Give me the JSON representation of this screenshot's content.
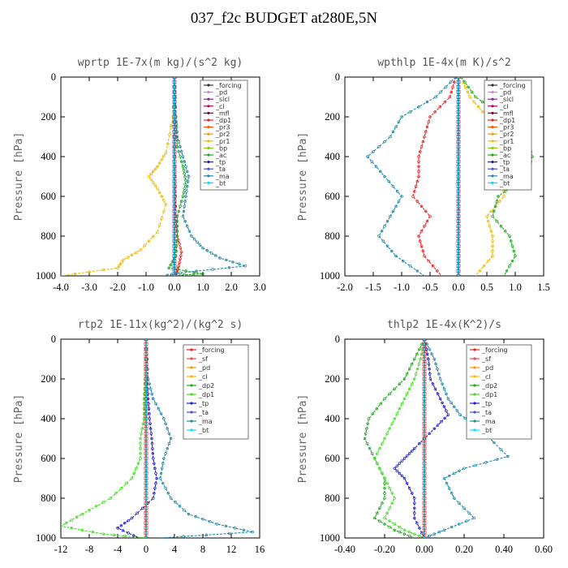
{
  "title": "037_f2c  BUDGET at280E,5N",
  "chart_data": [
    {
      "type": "line",
      "title": "wprtp   1E-7x(m kg)/(s^2 kg)",
      "ylabel": "Pressure [hPa]",
      "ylim": [
        1000,
        0
      ],
      "yticks": [
        0,
        200,
        400,
        600,
        800,
        1000
      ],
      "xlim": [
        -4.0,
        3.0
      ],
      "xticks": [
        -4.0,
        -3.0,
        -2.0,
        -1.0,
        0.0,
        1.0,
        2.0,
        3.0
      ],
      "xtick_labels": [
        "-4.0",
        "-3.0",
        "-2.0",
        "-1.0",
        "0.0",
        "1.0",
        "2.0",
        "3.0"
      ],
      "legend": "top-right",
      "series": [
        {
          "name": "_forcing",
          "color": "#333333",
          "x": [
            0,
            0
          ],
          "y": [
            0,
            1000
          ]
        },
        {
          "name": "_pd",
          "color": "#cc88cc",
          "x": [
            0,
            0
          ],
          "y": [
            0,
            1000
          ]
        },
        {
          "name": "_sicl",
          "color": "#8822aa",
          "x": [
            0,
            0
          ],
          "y": [
            0,
            1000
          ]
        },
        {
          "name": "_cl",
          "color": "#aa0066",
          "x": [
            0,
            0
          ],
          "y": [
            0,
            1000
          ]
        },
        {
          "name": "_mfl",
          "color": "#880044",
          "x": [
            0,
            0
          ],
          "y": [
            0,
            1000
          ]
        },
        {
          "name": "_dp1",
          "color": "#ee2222",
          "x": [
            0,
            0,
            0.02,
            0.05,
            0.1,
            0.25,
            0.15,
            0.05
          ],
          "y": [
            0,
            300,
            500,
            700,
            800,
            880,
            950,
            1000
          ]
        },
        {
          "name": "_pr3",
          "color": "#ff5500",
          "x": [
            0,
            0
          ],
          "y": [
            0,
            1000
          ]
        },
        {
          "name": "_pr2",
          "color": "#ff9900",
          "x": [
            0,
            0
          ],
          "y": [
            0,
            1000
          ]
        },
        {
          "name": "_pr1",
          "color": "#eebb00",
          "x": [
            0,
            -0.05,
            -0.3,
            -0.6,
            -0.9,
            -0.6,
            -0.3,
            -0.6,
            -1.2,
            -1.8,
            -2.0,
            -4.0
          ],
          "y": [
            0,
            200,
            380,
            450,
            500,
            560,
            640,
            780,
            870,
            920,
            960,
            1000
          ]
        },
        {
          "name": "_bp",
          "color": "#88cc00",
          "x": [
            0,
            0
          ],
          "y": [
            0,
            1000
          ]
        },
        {
          "name": "_ac",
          "color": "#22aa22",
          "x": [
            0,
            0.05,
            0.1,
            0.3,
            0.4,
            0.3,
            0.1,
            0.1,
            0.05,
            -0.2,
            1.0,
            -0.3
          ],
          "y": [
            0,
            200,
            350,
            450,
            520,
            600,
            700,
            800,
            900,
            960,
            990,
            1000
          ]
        },
        {
          "name": "_tp",
          "color": "#2222cc",
          "x": [
            0,
            0
          ],
          "y": [
            0,
            1000
          ]
        },
        {
          "name": "_ta",
          "color": "#4455dd",
          "x": [
            0,
            0
          ],
          "y": [
            0,
            1000
          ]
        },
        {
          "name": "_ma",
          "color": "#2288aa",
          "x": [
            0,
            0.05,
            0.1,
            0.3,
            0.5,
            0.4,
            0.3,
            0.6,
            1.0,
            1.6,
            2.5,
            0.2,
            -0.4
          ],
          "y": [
            0,
            200,
            300,
            400,
            500,
            600,
            700,
            800,
            860,
            910,
            950,
            985,
            1000
          ]
        },
        {
          "name": "_bt",
          "color": "#00e5ff",
          "x": [
            0,
            0
          ],
          "y": [
            0,
            1000
          ]
        }
      ]
    },
    {
      "type": "line",
      "title": "wpthlp   1E-4x(m K)/s^2",
      "ylabel": "Pressure [hPa]",
      "ylim": [
        1000,
        0
      ],
      "yticks": [
        0,
        200,
        400,
        600,
        800,
        1000
      ],
      "xlim": [
        -2.0,
        1.5
      ],
      "xticks": [
        -2.0,
        -1.5,
        -1.0,
        -0.5,
        0.0,
        0.5,
        1.0,
        1.5
      ],
      "xtick_labels": [
        "-2.0",
        "-1.5",
        "-1.0",
        "-0.5",
        "0.0",
        "0.5",
        "1.0",
        "1.5"
      ],
      "legend": "top-right",
      "series": [
        {
          "name": "_forcing",
          "color": "#333333",
          "x": [
            0,
            0
          ],
          "y": [
            0,
            1000
          ]
        },
        {
          "name": "_pd",
          "color": "#cc88cc",
          "x": [
            0,
            0
          ],
          "y": [
            0,
            1000
          ]
        },
        {
          "name": "_sicl",
          "color": "#8822aa",
          "x": [
            0,
            0
          ],
          "y": [
            0,
            1000
          ]
        },
        {
          "name": "_cl",
          "color": "#aa0066",
          "x": [
            0,
            0
          ],
          "y": [
            0,
            1000
          ]
        },
        {
          "name": "_mfl",
          "color": "#880044",
          "x": [
            0,
            0
          ],
          "y": [
            0,
            1000
          ]
        },
        {
          "name": "_dp1",
          "color": "#ee2222",
          "x": [
            -0.05,
            -0.15,
            -0.5,
            -0.6,
            -0.7,
            -0.7,
            -0.8,
            -0.5,
            -0.7,
            -0.6,
            -0.3
          ],
          "y": [
            0,
            100,
            200,
            300,
            400,
            500,
            600,
            700,
            800,
            900,
            1000
          ]
        },
        {
          "name": "_pr3",
          "color": "#ff5500",
          "x": [
            0,
            0
          ],
          "y": [
            0,
            1000
          ]
        },
        {
          "name": "_pr2",
          "color": "#ff9900",
          "x": [
            0,
            0
          ],
          "y": [
            0,
            1000
          ]
        },
        {
          "name": "_pr1",
          "color": "#eebb00",
          "x": [
            0.05,
            0.2,
            0.5,
            0.7,
            0.6,
            0.8,
            0.8,
            0.5,
            0.6,
            0.6,
            0.3
          ],
          "y": [
            0,
            100,
            200,
            300,
            400,
            500,
            600,
            700,
            800,
            900,
            1000
          ]
        },
        {
          "name": "_bp",
          "color": "#88cc00",
          "x": [
            0,
            0
          ],
          "y": [
            0,
            1000
          ]
        },
        {
          "name": "_ac",
          "color": "#22aa22",
          "x": [
            0.05,
            0.3,
            0.8,
            1.2,
            1.3,
            1.2,
            0.7,
            0.6,
            0.9,
            1.0,
            0.8
          ],
          "y": [
            0,
            100,
            200,
            300,
            400,
            500,
            600,
            700,
            800,
            900,
            1000
          ]
        },
        {
          "name": "_tp",
          "color": "#2222cc",
          "x": [
            0,
            0
          ],
          "y": [
            0,
            1000
          ]
        },
        {
          "name": "_ta",
          "color": "#4455dd",
          "x": [
            0,
            0
          ],
          "y": [
            0,
            1000
          ]
        },
        {
          "name": "_ma",
          "color": "#2288aa",
          "x": [
            -0.05,
            -0.4,
            -1.0,
            -1.2,
            -1.6,
            -1.3,
            -1.0,
            -1.2,
            -1.4,
            -1.1,
            -0.6
          ],
          "y": [
            0,
            100,
            200,
            300,
            400,
            500,
            600,
            700,
            800,
            900,
            1000
          ]
        },
        {
          "name": "_bt",
          "color": "#00e5ff",
          "x": [
            0,
            0
          ],
          "y": [
            0,
            1000
          ]
        }
      ]
    },
    {
      "type": "line",
      "title": "rtp2   1E-11x(kg^2)/(kg^2 s)",
      "ylabel": "Pressure [hPa]",
      "ylim": [
        1000,
        0
      ],
      "yticks": [
        0,
        200,
        400,
        600,
        800,
        1000
      ],
      "xlim": [
        -12,
        16
      ],
      "xticks": [
        -12,
        -8,
        -4,
        0,
        4,
        8,
        12,
        16
      ],
      "xtick_labels": [
        "-12",
        "-8",
        "-4",
        "0",
        "4",
        "8",
        "12",
        "16"
      ],
      "legend": "top-right",
      "series": [
        {
          "name": "_forcing",
          "color": "#ee2222",
          "x": [
            0,
            0
          ],
          "y": [
            0,
            1000
          ]
        },
        {
          "name": "_sf",
          "color": "#ff4444",
          "x": [
            0,
            0
          ],
          "y": [
            0,
            1000
          ]
        },
        {
          "name": "_pd",
          "color": "#ff9900",
          "x": [
            0,
            0
          ],
          "y": [
            0,
            1000
          ]
        },
        {
          "name": "_cl",
          "color": "#eebb00",
          "x": [
            0,
            0
          ],
          "y": [
            0,
            1000
          ]
        },
        {
          "name": "_dp2",
          "color": "#22aa22",
          "x": [
            0,
            0
          ],
          "y": [
            0,
            1000
          ]
        },
        {
          "name": "_dp1",
          "color": "#44dd22",
          "x": [
            0,
            -0.1,
            -0.3,
            -0.3,
            -0.8,
            -0.8,
            -2.0,
            -5.0,
            -9.0,
            -12.0,
            -6.0,
            0.0
          ],
          "y": [
            0,
            200,
            300,
            400,
            500,
            600,
            700,
            800,
            880,
            940,
            980,
            1000
          ]
        },
        {
          "name": "_tp",
          "color": "#2222cc",
          "x": [
            0,
            0.1,
            0.3,
            0.5,
            0.8,
            1.0,
            1.5,
            1.0,
            -2.0,
            -4.0,
            -1.0
          ],
          "y": [
            0,
            200,
            300,
            400,
            500,
            600,
            700,
            800,
            900,
            950,
            1000
          ]
        },
        {
          "name": "_ta",
          "color": "#4455dd",
          "x": [
            0,
            0
          ],
          "y": [
            0,
            1000
          ]
        },
        {
          "name": "_ma",
          "color": "#2288aa",
          "x": [
            0,
            0.3,
            1.0,
            2.5,
            3.5,
            2.5,
            2.0,
            3.5,
            6.0,
            10.0,
            15.0,
            2.0
          ],
          "y": [
            0,
            200,
            300,
            400,
            500,
            600,
            700,
            800,
            880,
            930,
            970,
            1000
          ]
        },
        {
          "name": "_bt",
          "color": "#00e5ff",
          "x": [
            0,
            0
          ],
          "y": [
            0,
            1000
          ]
        }
      ]
    },
    {
      "type": "line",
      "title": "thlp2   1E-4x(K^2)/s",
      "ylabel": "Pressure [hPa]",
      "ylim": [
        1000,
        0
      ],
      "yticks": [
        0,
        200,
        400,
        600,
        800,
        1000
      ],
      "xlim": [
        -0.4,
        0.6
      ],
      "xticks": [
        -0.4,
        -0.2,
        0.0,
        0.2,
        0.4,
        0.6
      ],
      "xtick_labels": [
        "-0.40",
        "-0.20",
        "0.00",
        "0.20",
        "0.40",
        "0.60"
      ],
      "legend": "top-right",
      "series": [
        {
          "name": "_forcing",
          "color": "#ee2222",
          "x": [
            0,
            0
          ],
          "y": [
            0,
            1000
          ]
        },
        {
          "name": "_sf",
          "color": "#ff4444",
          "x": [
            0,
            0
          ],
          "y": [
            0,
            1000
          ]
        },
        {
          "name": "_pd",
          "color": "#ff9900",
          "x": [
            0,
            0
          ],
          "y": [
            0,
            1000
          ]
        },
        {
          "name": "_cl",
          "color": "#eebb00",
          "x": [
            0,
            0
          ],
          "y": [
            0,
            1000
          ]
        },
        {
          "name": "_dp2",
          "color": "#22aa22",
          "x": [
            0,
            -0.05,
            -0.1,
            -0.2,
            -0.28,
            -0.3,
            -0.25,
            -0.2,
            -0.2,
            -0.25,
            -0.15,
            -0.05
          ],
          "y": [
            0,
            100,
            200,
            300,
            400,
            500,
            600,
            700,
            800,
            900,
            960,
            1000
          ]
        },
        {
          "name": "_dp1",
          "color": "#44dd22",
          "x": [
            0,
            -0.02,
            -0.05,
            -0.1,
            -0.15,
            -0.2,
            -0.25,
            -0.2,
            -0.15,
            -0.2,
            -0.1,
            0
          ],
          "y": [
            0,
            100,
            200,
            300,
            400,
            500,
            600,
            700,
            800,
            900,
            960,
            1000
          ]
        },
        {
          "name": "_tp",
          "color": "#2222cc",
          "x": [
            0,
            0.02,
            0.03,
            0.08,
            0.12,
            0.05,
            -0.05,
            -0.1,
            -0.15,
            -0.1,
            -0.05,
            -0.05,
            0
          ],
          "y": [
            0,
            100,
            200,
            300,
            380,
            450,
            550,
            600,
            650,
            700,
            800,
            900,
            1000
          ]
        },
        {
          "name": "_ta",
          "color": "#4455dd",
          "x": [
            0,
            0
          ],
          "y": [
            0,
            1000
          ]
        },
        {
          "name": "_ma",
          "color": "#2288aa",
          "x": [
            0,
            0.05,
            0.08,
            0.12,
            0.18,
            0.28,
            0.42,
            0.2,
            0.1,
            0.15,
            0.25,
            0.1,
            0
          ],
          "y": [
            0,
            100,
            200,
            300,
            380,
            450,
            590,
            650,
            700,
            800,
            900,
            960,
            1000
          ]
        },
        {
          "name": "_bt",
          "color": "#00e5ff",
          "x": [
            0,
            0
          ],
          "y": [
            0,
            1000
          ]
        }
      ]
    }
  ]
}
